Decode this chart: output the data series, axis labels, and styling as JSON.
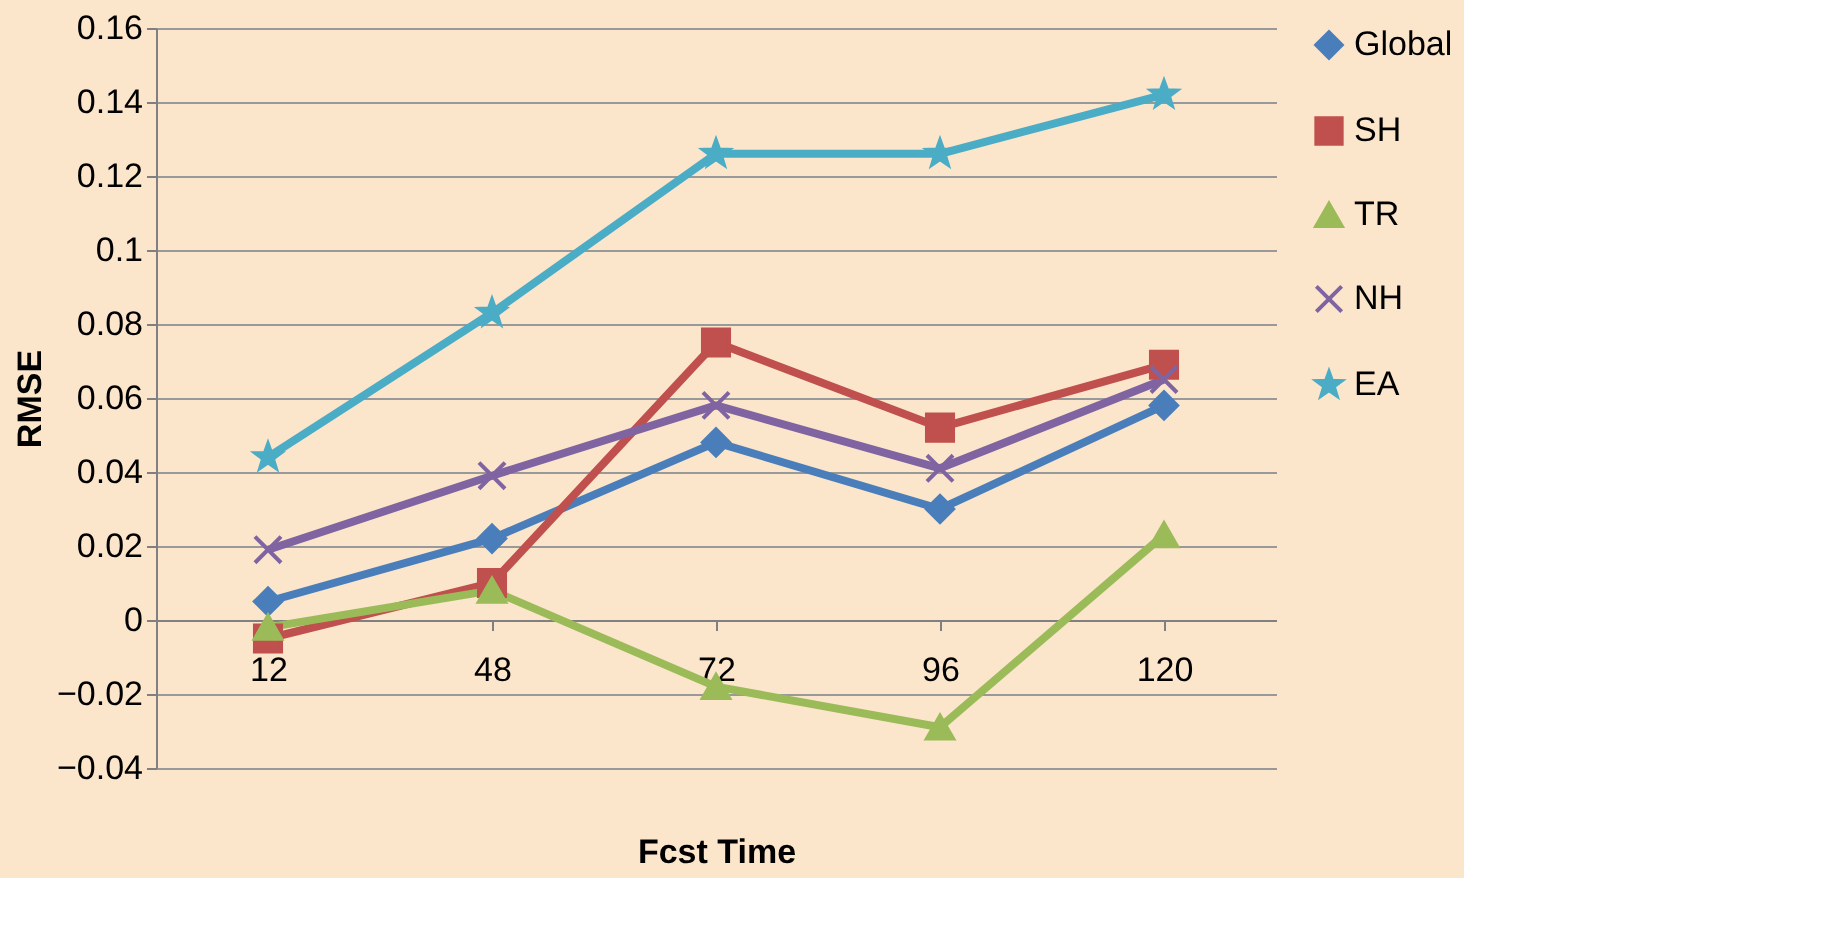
{
  "chart_data": {
    "type": "line",
    "xlabel": "Fcst Time",
    "ylabel": "RMSE",
    "categories": [
      "12",
      "48",
      "72",
      "96",
      "120"
    ],
    "ylim": [
      -0.04,
      0.16
    ],
    "yticks": [
      -0.04,
      -0.02,
      0,
      0.02,
      0.04,
      0.06,
      0.08,
      0.1,
      0.12,
      0.14,
      0.16
    ],
    "grid": "y",
    "legend": "right",
    "line_style": "solid",
    "series": [
      {
        "name": "Global",
        "color": "#4a7ebb",
        "marker": "diamond",
        "values": [
          0.005,
          0.022,
          0.048,
          0.03,
          0.058
        ]
      },
      {
        "name": "SH",
        "color": "#c0504d",
        "marker": "square",
        "values": [
          -0.005,
          0.01,
          0.075,
          0.052,
          0.069
        ]
      },
      {
        "name": "TR",
        "color": "#9bbb59",
        "marker": "triangle",
        "values": [
          -0.002,
          0.008,
          -0.018,
          -0.029,
          0.023
        ]
      },
      {
        "name": "NH",
        "color": "#8064a2",
        "marker": "cross",
        "values": [
          0.019,
          0.039,
          0.058,
          0.041,
          0.065
        ]
      },
      {
        "name": "EA",
        "color": "#4bacc6",
        "marker": "star",
        "values": [
          0.044,
          0.083,
          0.126,
          0.126,
          0.142
        ]
      }
    ]
  }
}
